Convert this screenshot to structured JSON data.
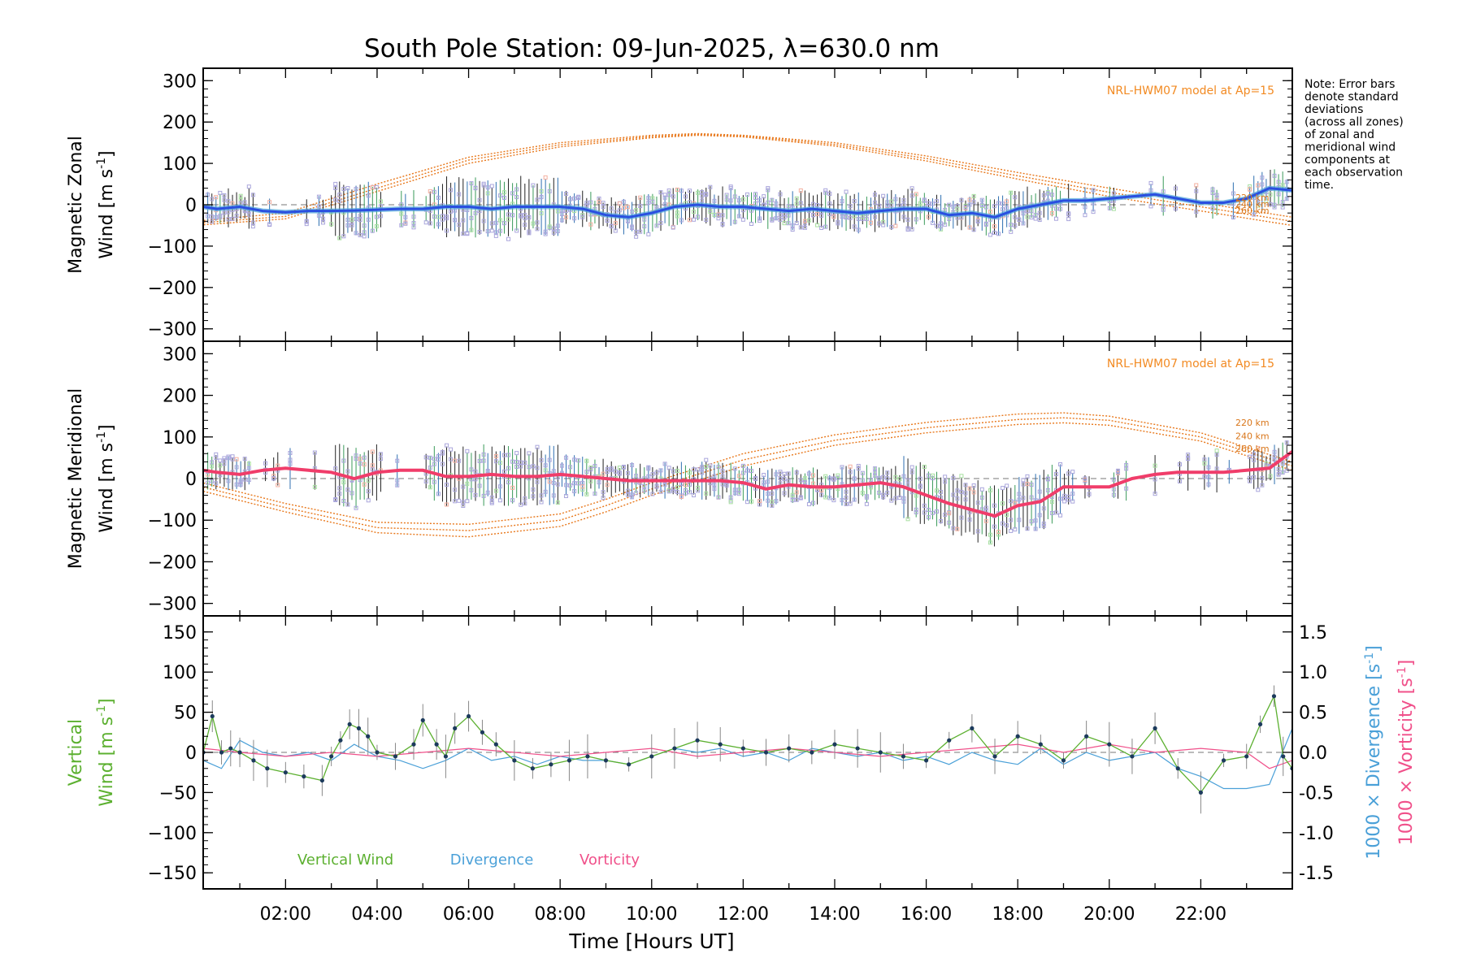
{
  "chart_data": {
    "type": "line",
    "title": "South Pole Station: 09-Jun-2025, λ=630.0 nm",
    "xlabel": "Time [Hours UT]",
    "xlim": [
      0.2,
      24.0
    ],
    "x_ticks": [
      "02:00",
      "04:00",
      "06:00",
      "08:00",
      "10:00",
      "12:00",
      "14:00",
      "16:00",
      "18:00",
      "20:00",
      "22:00"
    ],
    "x_tick_hours": [
      2,
      4,
      6,
      8,
      10,
      12,
      14,
      16,
      18,
      20,
      22
    ],
    "note": [
      "Note: Error bars",
      "denote standard",
      "deviations",
      "(across all zones)",
      "of zonal and",
      "meridional wind",
      "components at",
      "each observation",
      "time."
    ],
    "colors": {
      "zonal": "#2a4fe0",
      "zonal_err": "#4fa6d8",
      "meridional": "#f03d6a",
      "model": "#e8781c",
      "scatter": "#aaa6dc",
      "vertical": "#5cb030",
      "divergence": "#4aa0d8",
      "vorticity": "#f0508a"
    },
    "panels": [
      {
        "id": "zonal",
        "ylabel": [
          "Magnetic Zonal",
          "Wind [m s",
          "-1",
          "]"
        ],
        "ylim": [
          -330,
          330
        ],
        "y_ticks": [
          -300,
          -200,
          -100,
          0,
          100,
          200,
          300
        ],
        "model_label": "NRL-HWM07 model at Ap=15",
        "altitudes": [
          "220 km",
          "240 km",
          "260 km"
        ],
        "series": [
          {
            "name": "Zonal wind",
            "x": [
              0.2,
              0.5,
              1.0,
              1.5,
              2.0,
              2.5,
              3.0,
              3.5,
              4.0,
              4.5,
              5.0,
              5.5,
              6.0,
              6.5,
              7.0,
              7.5,
              8.0,
              8.5,
              9.0,
              9.5,
              10.0,
              10.5,
              11.0,
              11.5,
              12.0,
              12.5,
              13.0,
              13.5,
              14.0,
              14.5,
              15.0,
              15.5,
              16.0,
              16.5,
              17.0,
              17.5,
              18.0,
              18.5,
              19.0,
              19.5,
              20.0,
              20.5,
              21.0,
              21.5,
              22.0,
              22.5,
              23.0,
              23.5,
              24.0
            ],
            "y": [
              -5,
              -10,
              -5,
              -15,
              -18,
              -15,
              -15,
              -14,
              -12,
              -10,
              -10,
              -5,
              -5,
              -10,
              -5,
              -5,
              -5,
              -10,
              -25,
              -30,
              -20,
              -5,
              0,
              -5,
              -5,
              -10,
              -15,
              -10,
              -15,
              -20,
              -15,
              -10,
              -10,
              -25,
              -20,
              -30,
              -10,
              0,
              10,
              10,
              15,
              20,
              25,
              15,
              5,
              5,
              15,
              40,
              35
            ]
          },
          {
            "name": "NRL-HWM07 220 km",
            "x": [
              0,
              2,
              4,
              6,
              8,
              10,
              11,
              12,
              14,
              16,
              18,
              20,
              22,
              24
            ],
            "y": [
              -40,
              -20,
              50,
              115,
              150,
              168,
              172,
              168,
              150,
              118,
              78,
              40,
              5,
              -30
            ]
          },
          {
            "name": "NRL-HWM07 240 km",
            "x": [
              0,
              2,
              4,
              6,
              8,
              10,
              11,
              12,
              14,
              16,
              18,
              20,
              22,
              24
            ],
            "y": [
              -45,
              -28,
              40,
              108,
              145,
              165,
              170,
              166,
              146,
              112,
              70,
              30,
              -5,
              -40
            ]
          },
          {
            "name": "NRL-HWM07 260 km",
            "x": [
              0,
              2,
              4,
              6,
              8,
              10,
              11,
              12,
              14,
              16,
              18,
              20,
              22,
              24
            ],
            "y": [
              -50,
              -34,
              32,
              100,
              140,
              162,
              168,
              164,
              142,
              106,
              62,
              20,
              -15,
              -50
            ]
          }
        ]
      },
      {
        "id": "meridional",
        "ylabel": [
          "Magnetic Meridional",
          "Wind [m s",
          "-1",
          "]"
        ],
        "ylim": [
          -330,
          330
        ],
        "y_ticks": [
          -300,
          -200,
          -100,
          0,
          100,
          200,
          300
        ],
        "model_label": "NRL-HWM07 model at Ap=15",
        "altitudes": [
          "220 km",
          "240 km",
          "260 km"
        ],
        "series": [
          {
            "name": "Meridional wind",
            "x": [
              0.2,
              0.5,
              1.0,
              1.5,
              2.0,
              2.5,
              3.0,
              3.5,
              4.0,
              4.5,
              5.0,
              5.5,
              6.0,
              6.5,
              7.0,
              7.5,
              8.0,
              8.5,
              9.0,
              9.5,
              10.0,
              10.5,
              11.0,
              11.5,
              12.0,
              12.5,
              13.0,
              13.5,
              14.0,
              14.5,
              15.0,
              15.5,
              16.0,
              16.5,
              17.0,
              17.5,
              18.0,
              18.5,
              19.0,
              19.5,
              20.0,
              20.5,
              21.0,
              21.5,
              22.0,
              22.5,
              23.0,
              23.5,
              24.0
            ],
            "y": [
              20,
              15,
              10,
              20,
              25,
              20,
              15,
              0,
              15,
              20,
              20,
              5,
              5,
              10,
              5,
              5,
              10,
              5,
              0,
              -5,
              -5,
              -5,
              -5,
              -5,
              -10,
              -25,
              -15,
              -20,
              -20,
              -15,
              -10,
              -20,
              -40,
              -60,
              -75,
              -90,
              -65,
              -55,
              -20,
              -20,
              -20,
              0,
              10,
              15,
              15,
              15,
              20,
              25,
              65
            ]
          },
          {
            "name": "NRL-HWM07 220 km",
            "x": [
              0,
              2,
              4,
              6,
              8,
              9,
              10,
              12,
              14,
              16,
              18,
              19,
              20,
              22,
              24
            ],
            "y": [
              -5,
              -60,
              -105,
              -110,
              -85,
              -50,
              -10,
              60,
              105,
              135,
              155,
              158,
              150,
              110,
              40
            ]
          },
          {
            "name": "NRL-HWM07 240 km",
            "x": [
              0,
              2,
              4,
              6,
              8,
              9,
              10,
              12,
              14,
              16,
              18,
              19,
              20,
              22,
              24
            ],
            "y": [
              -15,
              -70,
              -118,
              -125,
              -100,
              -65,
              -25,
              45,
              92,
              122,
              142,
              146,
              140,
              100,
              30
            ]
          },
          {
            "name": "NRL-HWM07 260 km",
            "x": [
              0,
              2,
              4,
              6,
              8,
              9,
              10,
              12,
              14,
              16,
              18,
              19,
              20,
              22,
              24
            ],
            "y": [
              -25,
              -80,
              -130,
              -140,
              -115,
              -80,
              -40,
              30,
              80,
              110,
              130,
              134,
              128,
              90,
              20
            ]
          }
        ]
      },
      {
        "id": "vertical",
        "ylabel": [
          "Vertical",
          "Wind [m s",
          "-1",
          "]"
        ],
        "ylim": [
          -170,
          170
        ],
        "y_ticks": [
          -150,
          -100,
          -50,
          0,
          50,
          100,
          150
        ],
        "y2_ticks": [
          "-1.5",
          "-1.0",
          "-0.5",
          "0.0",
          "0.5",
          "1.0",
          "1.5"
        ],
        "y2_tick_values": [
          -1.5,
          -1.0,
          -0.5,
          0.0,
          0.5,
          1.0,
          1.5
        ],
        "y2lim": [
          -1.7,
          1.7
        ],
        "y2label_div": [
          "1000 × Divergence [s",
          "-1",
          "]"
        ],
        "y2label_vort": [
          "1000 × Vorticity [s",
          "-1",
          "]"
        ],
        "legend": [
          "Vertical Wind",
          "Divergence",
          "Vorticity"
        ],
        "series": [
          {
            "name": "Vertical Wind",
            "x": [
              0.2,
              0.4,
              0.6,
              0.8,
              1.0,
              1.3,
              1.6,
              2.0,
              2.4,
              2.8,
              3.0,
              3.2,
              3.4,
              3.6,
              3.8,
              4.0,
              4.4,
              4.8,
              5.0,
              5.3,
              5.5,
              5.7,
              6.0,
              6.3,
              6.6,
              7.0,
              7.4,
              7.8,
              8.2,
              8.6,
              9.0,
              9.5,
              10.0,
              10.5,
              11.0,
              11.5,
              12.0,
              12.5,
              13.0,
              13.5,
              14.0,
              14.5,
              15.0,
              15.5,
              16.0,
              16.5,
              17.0,
              17.5,
              18.0,
              18.5,
              19.0,
              19.5,
              20.0,
              20.5,
              21.0,
              21.5,
              22.0,
              22.5,
              23.0,
              23.3,
              23.6,
              23.8,
              24.0
            ],
            "y": [
              0,
              45,
              0,
              5,
              0,
              -10,
              -20,
              -25,
              -30,
              -35,
              -5,
              15,
              35,
              30,
              20,
              0,
              -5,
              10,
              40,
              10,
              -5,
              30,
              45,
              25,
              10,
              -10,
              -20,
              -15,
              -10,
              -5,
              -10,
              -15,
              -5,
              5,
              15,
              10,
              5,
              0,
              5,
              0,
              10,
              5,
              0,
              -5,
              -10,
              15,
              30,
              -5,
              20,
              10,
              -10,
              20,
              10,
              -5,
              30,
              -20,
              -50,
              -10,
              -5,
              35,
              70,
              -5,
              -20
            ]
          },
          {
            "name": "Divergence",
            "axis": "y2",
            "x": [
              0.2,
              0.6,
              1.0,
              1.5,
              2.0,
              2.5,
              3.0,
              3.5,
              4.0,
              4.5,
              5.0,
              5.5,
              6.0,
              6.5,
              7.0,
              7.5,
              8.0,
              8.5,
              9.0,
              9.5,
              10.0,
              10.5,
              11.0,
              11.5,
              12.0,
              12.5,
              13.0,
              13.5,
              14.0,
              14.5,
              15.0,
              15.5,
              16.0,
              16.5,
              17.0,
              17.5,
              18.0,
              18.5,
              19.0,
              19.5,
              20.0,
              20.5,
              21.0,
              21.5,
              22.0,
              22.5,
              23.0,
              23.5,
              24.0
            ],
            "y": [
              -0.1,
              -0.2,
              0.15,
              0.0,
              -0.05,
              0.0,
              -0.1,
              0.1,
              -0.05,
              -0.1,
              -0.2,
              -0.1,
              0.05,
              -0.1,
              -0.05,
              -0.15,
              -0.05,
              -0.1,
              -0.1,
              -0.15,
              -0.05,
              0.05,
              0.0,
              0.05,
              -0.05,
              0.0,
              -0.1,
              0.05,
              0.0,
              -0.05,
              0.0,
              -0.1,
              -0.05,
              -0.15,
              0.0,
              -0.1,
              -0.15,
              0.05,
              -0.15,
              0.0,
              -0.1,
              -0.05,
              0.0,
              -0.2,
              -0.3,
              -0.45,
              -0.45,
              -0.4,
              0.3
            ]
          },
          {
            "name": "Vorticity",
            "axis": "y2",
            "x": [
              0.2,
              1.0,
              2.0,
              3.0,
              4.0,
              5.0,
              6.0,
              7.0,
              8.0,
              9.0,
              10.0,
              11.0,
              12.0,
              13.0,
              14.0,
              15.0,
              16.0,
              17.0,
              18.0,
              19.0,
              20.0,
              21.0,
              22.0,
              23.0,
              23.5,
              24.0
            ],
            "y": [
              0.05,
              0.0,
              -0.05,
              0.0,
              -0.05,
              0.0,
              0.05,
              0.0,
              -0.05,
              0.0,
              0.05,
              -0.05,
              0.0,
              0.05,
              0.0,
              -0.05,
              0.0,
              0.05,
              0.1,
              0.0,
              0.1,
              0.0,
              0.05,
              0.0,
              -0.2,
              -0.1
            ]
          }
        ]
      }
    ]
  }
}
